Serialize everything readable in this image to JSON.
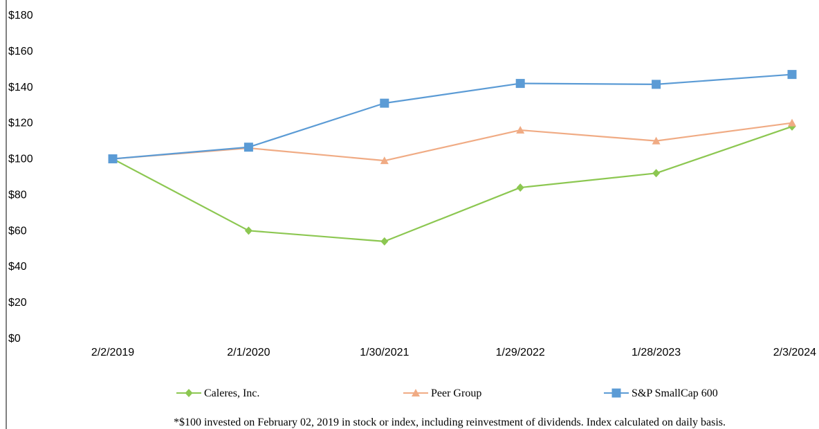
{
  "chart_data": {
    "type": "line",
    "categories": [
      "2/2/2019",
      "2/1/2020",
      "1/30/2021",
      "1/29/2022",
      "1/28/2023",
      "2/3/2024"
    ],
    "ylim": [
      0,
      180
    ],
    "yticks": [
      "$0",
      "$20",
      "$40",
      "$60",
      "$80",
      "$100",
      "$120",
      "$140",
      "$160",
      "$180"
    ],
    "ytick_values": [
      0,
      20,
      40,
      60,
      80,
      100,
      120,
      140,
      160,
      180
    ],
    "grid": false,
    "legend_position": "bottom",
    "series": [
      {
        "name": "Caleres, Inc.",
        "color": "#8cc751",
        "marker": "diamond",
        "values": [
          100,
          60,
          54,
          84,
          92,
          118
        ]
      },
      {
        "name": "Peer Group",
        "color": "#f0ab84",
        "marker": "triangle",
        "values": [
          100,
          106,
          99,
          116,
          110,
          120
        ]
      },
      {
        "name": "S&P SmallCap 600",
        "color": "#5b9bd5",
        "marker": "square",
        "values": [
          100,
          106.5,
          131,
          142,
          141.5,
          147
        ]
      }
    ],
    "footnote": "*$100 invested on February 02, 2019 in stock or index, including reinvestment of dividends. Index calculated on daily basis."
  }
}
